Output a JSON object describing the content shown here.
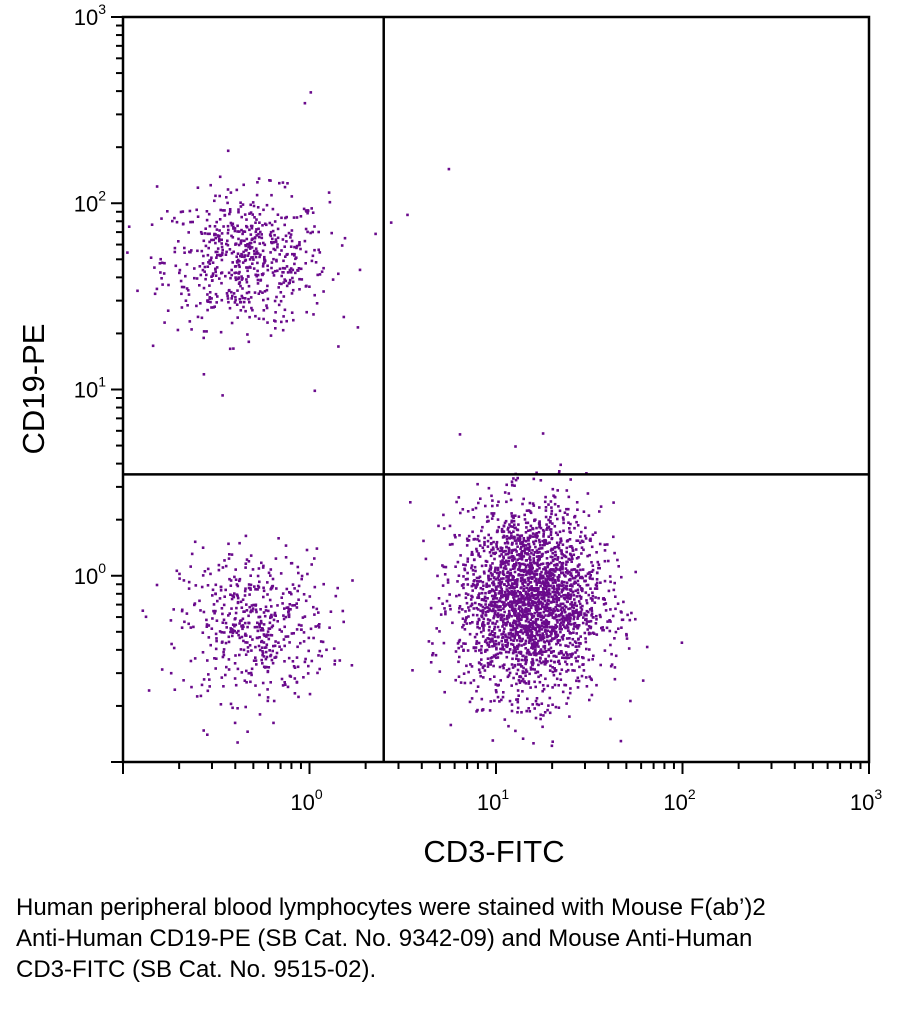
{
  "chart_data": {
    "type": "scatter",
    "subtype": "flow-cytometry-dot-plot",
    "xlabel": "CD3-FITC",
    "ylabel": "CD19-PE",
    "xscale": "log",
    "yscale": "log",
    "xlim": [
      0.1,
      1000
    ],
    "ylim": [
      0.1,
      1000
    ],
    "x_ticks": [
      {
        "base": "10",
        "exp": "0",
        "value": 1
      },
      {
        "base": "10",
        "exp": "1",
        "value": 10
      },
      {
        "base": "10",
        "exp": "2",
        "value": 100
      },
      {
        "base": "10",
        "exp": "3",
        "value": 1000
      }
    ],
    "y_ticks": [
      {
        "base": "10",
        "exp": "0",
        "value": 1
      },
      {
        "base": "10",
        "exp": "1",
        "value": 10
      },
      {
        "base": "10",
        "exp": "2",
        "value": 100
      },
      {
        "base": "10",
        "exp": "3",
        "value": 1000
      }
    ],
    "quadrant_gates": {
      "x": 2.5,
      "y": 3.5
    },
    "point_color": "#6a0a8c",
    "populations": [
      {
        "center": [
          0.45,
          50
        ],
        "spread": [
          0.22,
          0.18
        ],
        "count": 620
      },
      {
        "center": [
          0.5,
          0.55
        ],
        "spread": [
          0.2,
          0.2
        ],
        "count": 520
      },
      {
        "center": [
          15,
          0.75
        ],
        "spread": [
          0.19,
          0.25
        ],
        "count": 2600
      }
    ],
    "outliers": [
      [
        0.93,
        350
      ],
      [
        1.0,
        400
      ],
      [
        5.5,
        155
      ],
      [
        3.3,
        88
      ],
      [
        2.7,
        80
      ],
      [
        1.05,
        10
      ],
      [
        0.15,
        125
      ],
      [
        0.17,
        92
      ],
      [
        0.6,
        135
      ],
      [
        0.75,
        130
      ]
    ]
  },
  "caption": "Human peripheral blood lymphocytes were stained with Mouse F(ab’)2 Anti-Human CD19-PE (SB Cat. No. 9342-09) and Mouse Anti-Human CD3-FITC (SB Cat. No. 9515-02)."
}
